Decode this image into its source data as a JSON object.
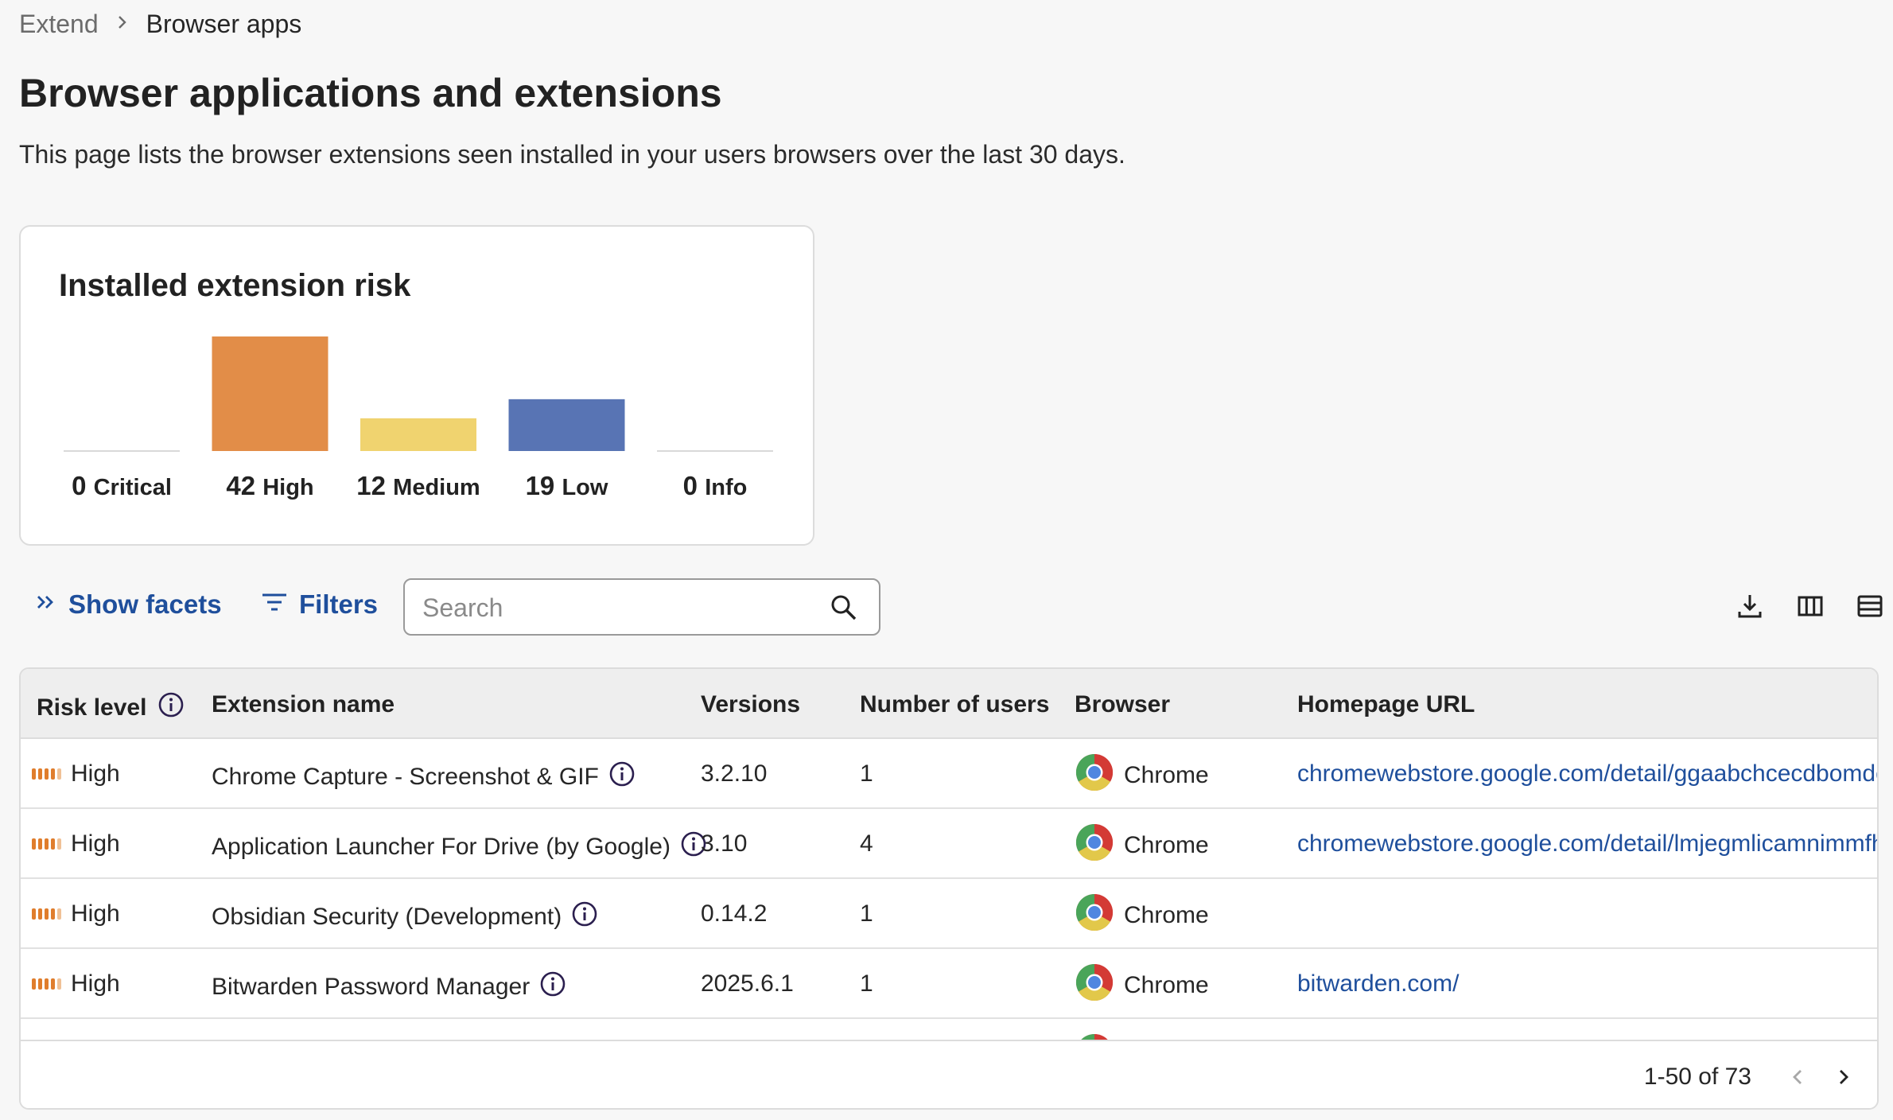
{
  "breadcrumb": {
    "parent": "Extend",
    "current": "Browser apps"
  },
  "page": {
    "title": "Browser applications and extensions",
    "description": "This page lists the browser extensions seen installed in your users browsers over the last 30 days."
  },
  "risk_card": {
    "title": "Installed extension risk"
  },
  "chart_data": {
    "type": "bar",
    "title": "Installed extension risk",
    "categories": [
      "Critical",
      "High",
      "Medium",
      "Low",
      "Info"
    ],
    "values": [
      0,
      42,
      12,
      19,
      0
    ],
    "colors": [
      "#d9d9d9",
      "#e28d48",
      "#f0d36f",
      "#5874b4",
      "#d9d9d9"
    ]
  },
  "toolbar": {
    "show_facets": "Show facets",
    "filters": "Filters",
    "search_placeholder": "Search",
    "icons": [
      "download-icon",
      "columns-icon",
      "density-icon"
    ]
  },
  "table": {
    "columns": [
      "Risk level",
      "Extension name",
      "Versions",
      "Number of users",
      "Browser",
      "Homepage URL"
    ],
    "rows": [
      {
        "risk": "High",
        "name": "Chrome Capture - Screenshot & GIF",
        "version": "3.2.10",
        "users": "1",
        "browser": "Chrome",
        "url": "chromewebstore.google.com/detail/ggaabchcecdbomdcnbahdfddfikjmphe"
      },
      {
        "risk": "High",
        "name": "Application Launcher For Drive (by Google)",
        "version": "3.10",
        "users": "4",
        "browser": "Chrome",
        "url": "chromewebstore.google.com/detail/lmjegmlicamnimmfhcmpkclmigmmcbeh"
      },
      {
        "risk": "High",
        "name": "Obsidian Security (Development)",
        "version": "0.14.2",
        "users": "1",
        "browser": "Chrome",
        "url": ""
      },
      {
        "risk": "High",
        "name": "Bitwarden Password Manager",
        "version": "2025.6.1",
        "users": "1",
        "browser": "Chrome",
        "url": "bitwarden.com/"
      }
    ]
  },
  "pagination": {
    "range": "1-50 of 73"
  },
  "colors": {
    "accent": "#1f4f9c",
    "high": "#e07d2c"
  }
}
